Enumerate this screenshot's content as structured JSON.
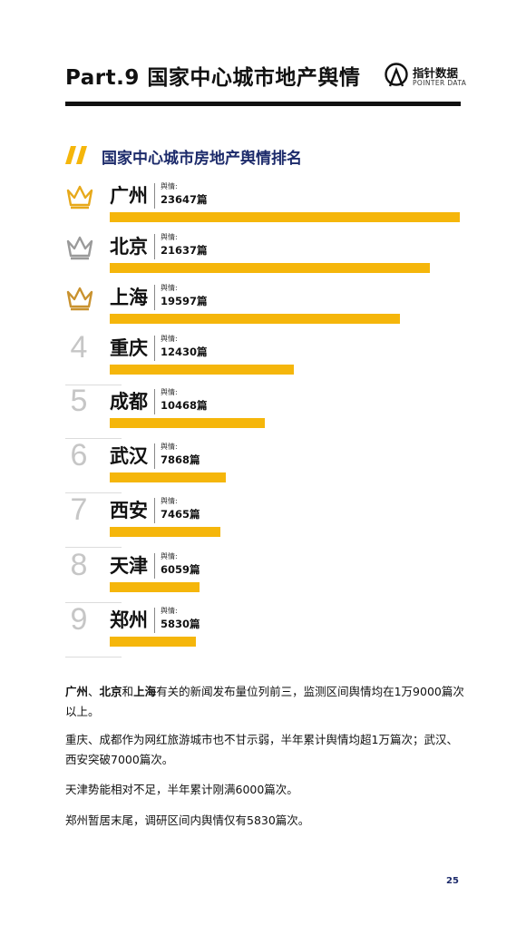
{
  "header": {
    "title": "Part.9 国家中心城市地产舆情",
    "logo_cn": "指针数据",
    "logo_en": "POINTER DATA"
  },
  "section": {
    "title": "国家中心城市房地产舆情排名"
  },
  "chart_data": {
    "type": "bar",
    "title": "国家中心城市房地产舆情排名",
    "orientation": "horizontal",
    "categories": [
      "广州",
      "北京",
      "上海",
      "重庆",
      "成都",
      "武汉",
      "西安",
      "天津",
      "郑州"
    ],
    "values": [
      23647,
      21637,
      19597,
      12430,
      10468,
      7868,
      7465,
      6059,
      5830
    ],
    "value_label": "舆情:",
    "value_suffix": "篇",
    "value_display": [
      "23647篇",
      "21637篇",
      "19597篇",
      "12430篇",
      "10468篇",
      "7868篇",
      "7465篇",
      "6059篇",
      "5830篇"
    ],
    "ranks": [
      "",
      "",
      "",
      "4",
      "5",
      "6",
      "7",
      "8",
      "9"
    ],
    "rank_badges": [
      "crown-gold-icon",
      "crown-silver-icon",
      "crown-bronze-icon",
      "",
      "",
      "",
      "",
      "",
      ""
    ],
    "bar_color": "#f5b60b",
    "crown_colors": [
      "#e7a91b",
      "#9a9a9a",
      "#c9922f"
    ]
  },
  "paragraphs": [
    {
      "city1": "广州",
      "sep1": "、",
      "city2": "北京",
      "sep2": "和",
      "city3": "上海",
      "rest": "有关的新闻发布量位列前三，监测区间舆情均在1万9000篇次以上。"
    },
    {
      "text": "重庆、成都作为网红旅游城市也不甘示弱，半年累计舆情均超1万篇次；武汉、西安突破7000篇次。"
    },
    {
      "text": "天津势能相对不足，半年累计刚满6000篇次。"
    },
    {
      "text": "郑州暂居末尾，调研区间内舆情仅有5830篇次。"
    }
  ],
  "footer": {
    "page_number": "25"
  },
  "colors": {
    "accent": "#f5b60b",
    "navy": "#1d2b6b",
    "text": "#111111"
  }
}
